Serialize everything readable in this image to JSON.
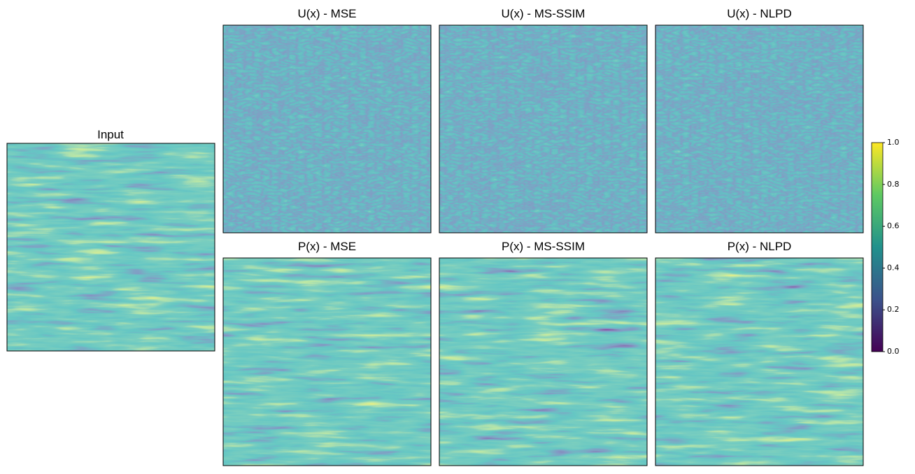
{
  "input": {
    "title": "Input"
  },
  "panels": [
    {
      "title": "U(x) - MSE"
    },
    {
      "title": "U(x) - MS-SSIM"
    },
    {
      "title": "U(x) - NLPD"
    },
    {
      "title": "P(x) - MSE"
    },
    {
      "title": "P(x) - MS-SSIM"
    },
    {
      "title": "P(x) - NLPD"
    }
  ],
  "colorbar": {
    "lim": [
      0,
      1
    ],
    "ticks": [
      {
        "value": 0,
        "label": "0.0"
      },
      0.2,
      0.4,
      0.6,
      0.8,
      {
        "value": 1,
        "label": "1.0"
      }
    ]
  }
}
